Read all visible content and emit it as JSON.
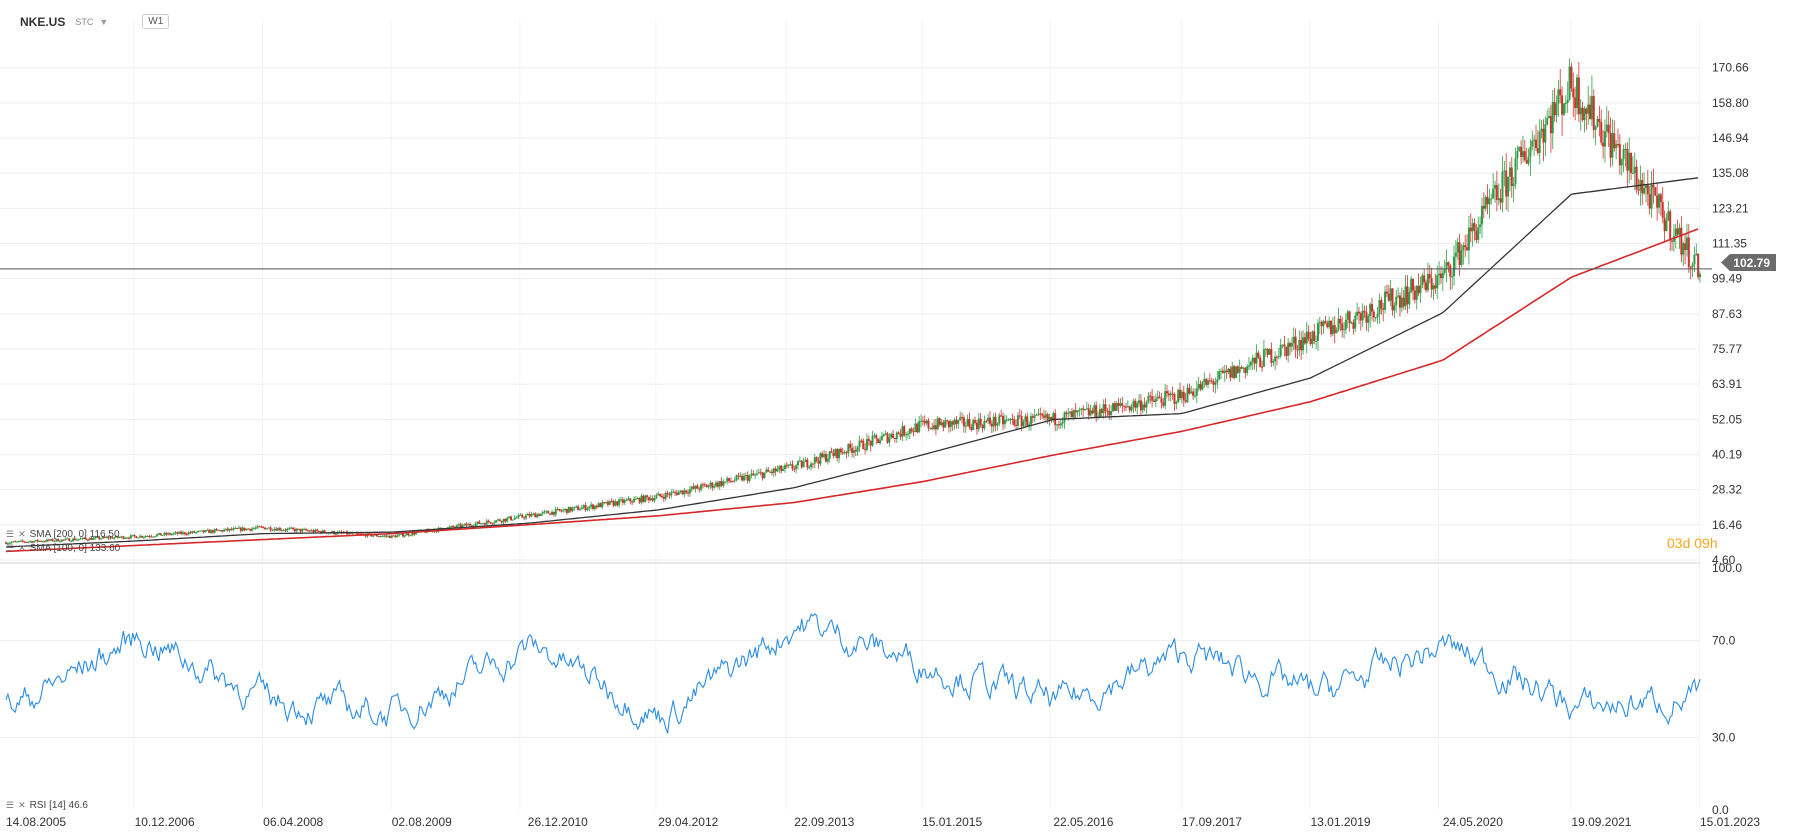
{
  "header": {
    "symbol": "NKE.US",
    "market": "STC",
    "timeframe": "W1"
  },
  "legend": {
    "sma200": "SMA [200, 0]  116.50",
    "sma100": "SMA [100, 0]  133.60",
    "rsi": "RSI [14]  46.6"
  },
  "countdown": "03d 09h",
  "last_price_label": "102.79",
  "colors": {
    "up": "#2e9e45",
    "down": "#d0312d",
    "sma200": "#d62728",
    "sma100": "#333333",
    "rsi": "#2b8ce0",
    "grid": "#eeeeee"
  },
  "chart_data": [
    {
      "type": "candlestick",
      "title": "NKE.US W1",
      "x": [
        "14.08.2005",
        "10.12.2006",
        "06.04.2008",
        "02.08.2009",
        "26.12.2010",
        "29.04.2012",
        "22.09.2013",
        "15.01.2015",
        "22.05.2016",
        "17.09.2017",
        "13.01.2019",
        "24.05.2020",
        "19.09.2021",
        "15.01.2023"
      ],
      "y_ticks": [
        4.6,
        16.46,
        28.32,
        40.19,
        52.05,
        63.91,
        75.77,
        87.63,
        99.49,
        111.35,
        123.21,
        135.08,
        146.94,
        158.8,
        170.66
      ],
      "ylim": [
        4.6,
        180
      ],
      "last_price": 102.79,
      "series": [
        {
          "name": "Close (approx.)",
          "x": [
            "14.08.2005",
            "10.12.2006",
            "06.04.2008",
            "02.08.2009",
            "26.12.2010",
            "29.04.2012",
            "22.09.2013",
            "15.01.2015",
            "22.05.2016",
            "17.09.2017",
            "13.01.2019",
            "24.05.2020",
            "19.09.2021",
            "15.01.2023"
          ],
          "values": [
            10.5,
            12.5,
            15.5,
            12.5,
            19.5,
            26,
            36,
            50,
            52,
            60,
            80,
            100,
            165,
            102.79
          ]
        },
        {
          "name": "SMA [200, 0]",
          "x": [
            "14.08.2005",
            "10.12.2006",
            "06.04.2008",
            "02.08.2009",
            "26.12.2010",
            "29.04.2012",
            "22.09.2013",
            "15.01.2015",
            "22.05.2016",
            "17.09.2017",
            "13.01.2019",
            "24.05.2020",
            "19.09.2021",
            "15.01.2023"
          ],
          "values": [
            7.5,
            9.5,
            11.5,
            13.5,
            16.5,
            19.5,
            24,
            31,
            40,
            48,
            58,
            72,
            100,
            116.5
          ]
        },
        {
          "name": "SMA [100, 0]",
          "x": [
            "14.08.2005",
            "10.12.2006",
            "06.04.2008",
            "02.08.2009",
            "26.12.2010",
            "29.04.2012",
            "22.09.2013",
            "15.01.2015",
            "22.05.2016",
            "17.09.2017",
            "13.01.2019",
            "24.05.2020",
            "19.09.2021",
            "15.01.2023"
          ],
          "values": [
            9,
            11,
            13.5,
            14,
            17,
            21.5,
            29,
            40,
            52,
            54,
            66,
            88,
            128,
            133.6
          ]
        }
      ]
    },
    {
      "type": "line",
      "title": "RSI [14]",
      "y_ticks": [
        0.0,
        30.0,
        70.0,
        100.0
      ],
      "ylim": [
        0,
        100
      ],
      "series": [
        {
          "name": "RSI [14]",
          "x": [
            "14.08.2005",
            "10.12.2006",
            "06.04.2008",
            "02.08.2009",
            "26.12.2010",
            "29.04.2012",
            "22.09.2013",
            "15.01.2015",
            "22.05.2016",
            "17.09.2017",
            "13.01.2019",
            "24.05.2020",
            "19.09.2021",
            "15.01.2023"
          ],
          "values": [
            42,
            72,
            45,
            40,
            68,
            38,
            78,
            60,
            44,
            65,
            48,
            68,
            42,
            46.6
          ]
        }
      ]
    }
  ]
}
